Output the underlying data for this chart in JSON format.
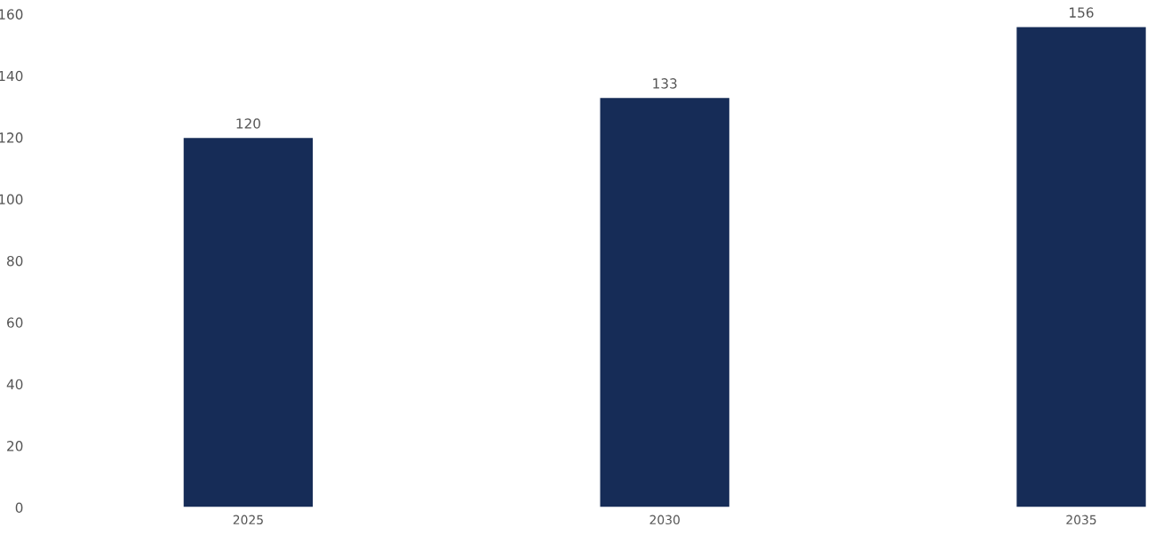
{
  "chart_data": {
    "type": "bar",
    "categories": [
      "2025",
      "2030",
      "2035"
    ],
    "values": [
      120,
      133,
      156
    ],
    "color": "#162c57",
    "ylim": [
      0,
      160
    ],
    "yticks": [
      0,
      20,
      40,
      60,
      80,
      100,
      120,
      140,
      160
    ],
    "grid": false,
    "data_labels": true
  }
}
